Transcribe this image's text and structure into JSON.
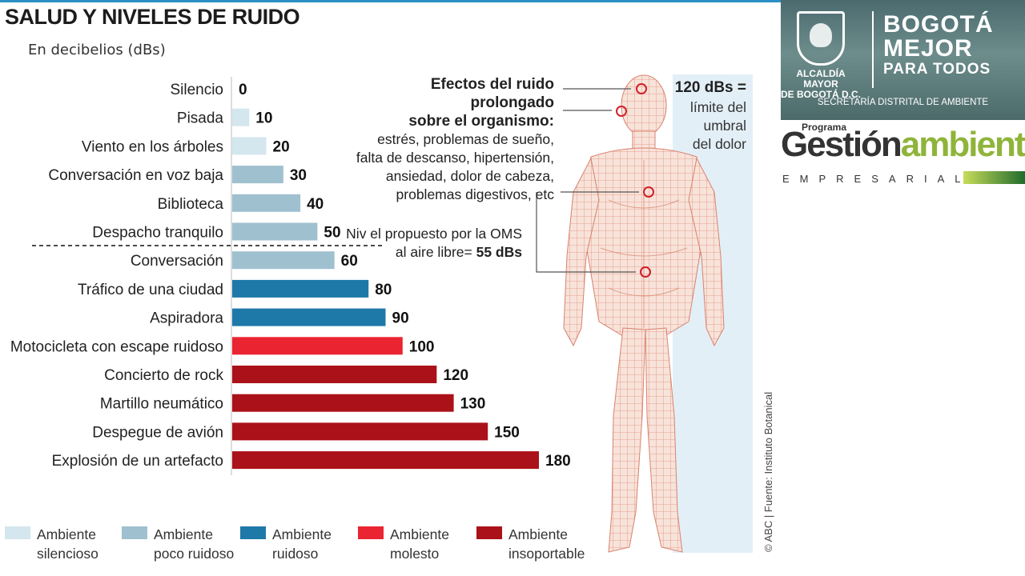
{
  "header": {
    "title": "SALUD Y NIVELES DE RUIDO",
    "subtitle": "En decibelios (dBs)"
  },
  "colors": {
    "silencioso": "#d4e6ee",
    "poco_ruidoso": "#9fc0cf",
    "ruidoso": "#1e78a8",
    "molesto": "#ea2430",
    "insoportable": "#ab1118"
  },
  "chart_data": {
    "type": "bar",
    "orientation": "horizontal",
    "title": "SALUD Y NIVELES DE RUIDO",
    "subtitle": "En decibelios (dBs)",
    "categories": [
      "Silencio",
      "Pisada",
      "Viento en los árboles",
      "Conversación en voz baja",
      "Biblioteca",
      "Despacho tranquilo",
      "Conversación",
      "Tráfico de una ciudad",
      "Aspiradora",
      "Motocicleta con escape ruidoso",
      "Concierto de rock",
      "Martillo neumático",
      "Despegue de avión",
      "Explosión de un artefacto"
    ],
    "values": [
      0,
      10,
      20,
      30,
      40,
      50,
      60,
      80,
      90,
      100,
      120,
      130,
      150,
      180
    ],
    "value_labels": [
      "0",
      "10",
      "20",
      "30",
      "40",
      "50",
      "60",
      "80",
      "90",
      "100",
      "120",
      "130",
      "150",
      "180"
    ],
    "levels": [
      "silencioso",
      "silencioso",
      "silencioso",
      "poco_ruidoso",
      "poco_ruidoso",
      "poco_ruidoso",
      "poco_ruidoso",
      "ruidoso",
      "ruidoso",
      "molesto",
      "insoportable",
      "insoportable",
      "insoportable",
      "insoportable"
    ],
    "xlim": [
      0,
      180
    ],
    "reference_line": {
      "value": 55,
      "style": "dashed"
    },
    "legend": [
      {
        "key": "silencioso",
        "line1": "Ambiente",
        "line2": "silencioso"
      },
      {
        "key": "poco_ruidoso",
        "line1": "Ambiente",
        "line2": "poco ruidoso"
      },
      {
        "key": "ruidoso",
        "line1": "Ambiente",
        "line2": "ruidoso"
      },
      {
        "key": "molesto",
        "line1": "Ambiente",
        "line2": "molesto"
      },
      {
        "key": "insoportable",
        "line1": "Ambiente",
        "line2": "insoportable"
      }
    ],
    "legend_position": "bottom"
  },
  "annotations": {
    "effects_title_1": "Efectos del ruido prolongado",
    "effects_title_2": "sobre el  organismo:",
    "effects_1": "estrés, problemas de sueño,",
    "effects_2": "falta de descanso, hipertensión,",
    "effects_3": "ansiedad, dolor de cabeza,",
    "effects_4": "problemas digestivos, etc",
    "oms_1": "Niv el propuesto por la OMS",
    "oms_2": "al aire libre=",
    "oms_value": "55 dBs",
    "pain_title": "120 dBs =",
    "pain_1": "límite del",
    "pain_2": "umbral",
    "pain_3": "del dolor",
    "credit": "© ABC | Fuente: Instituto Botanical"
  },
  "logos": {
    "alcaldia_1": "ALCALDÍA MAYOR",
    "alcaldia_2": "DE BOGOTÁ D.C.",
    "bogota_1": "BOGOTÁ",
    "bogota_2": "MEJOR",
    "bogota_3": "PARA TODOS",
    "secretaria": "SECRETARÍA DISTRITAL DE AMBIENTE",
    "programa": "Programa",
    "gestion": "Gestión",
    "ambiental": "ambiental",
    "empresarial": "EMPRESARIAL"
  }
}
